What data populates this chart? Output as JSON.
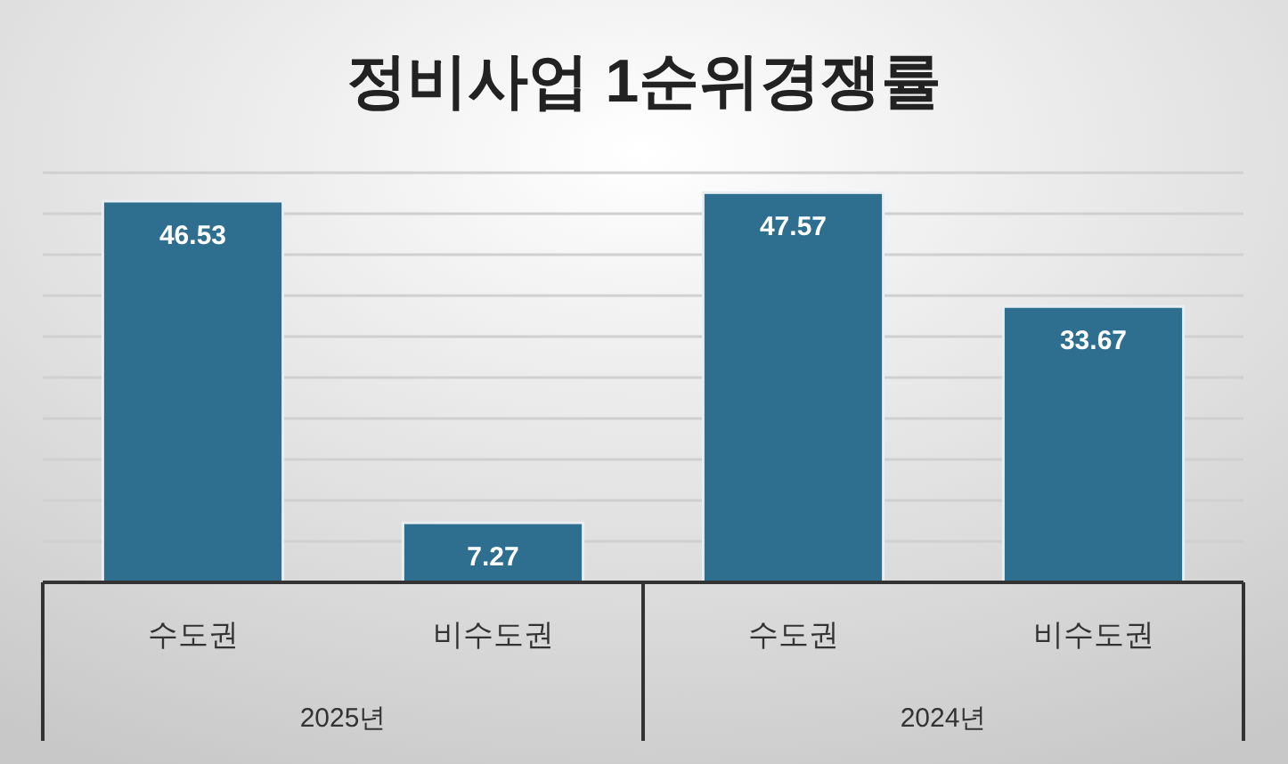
{
  "chart_data": {
    "type": "bar",
    "title": "정비사업 1순위경쟁률",
    "categories": [
      "수도권",
      "비수도권",
      "수도권",
      "비수도권"
    ],
    "values": [
      46.53,
      7.27,
      47.57,
      33.67
    ],
    "color": "#2e6e8e",
    "ylim": [
      0,
      50
    ],
    "yticks": [
      {
        "value": 0,
        "label": null
      },
      {
        "value": 5,
        "label": null
      },
      {
        "value": 10,
        "label": null
      },
      {
        "value": 15,
        "label": null
      },
      {
        "value": 20,
        "label": null
      },
      {
        "value": 25,
        "label": null
      },
      {
        "value": 30,
        "label": null
      },
      {
        "value": 35,
        "label": null
      },
      {
        "value": 40,
        "label": null
      },
      {
        "value": 45,
        "label": null
      },
      {
        "value": 50,
        "label": null
      }
    ],
    "grid": "y",
    "tick_labels": "x",
    "data_labels": true,
    "annotations": [
      "2025년",
      "2024년"
    ]
  }
}
